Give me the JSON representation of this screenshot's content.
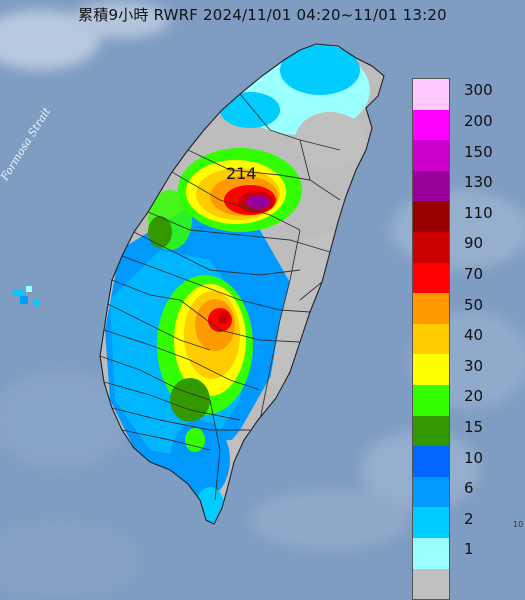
{
  "title": "累積9小時 RWRF 2024/11/01 04:20~11/01 13:20",
  "strait_label": "Formosa Strait",
  "max_value_label": "214",
  "corner_mark": "10",
  "legend": {
    "levels": [
      {
        "label": "300",
        "color": "#ffc8ff"
      },
      {
        "label": "200",
        "color": "#ff00ff"
      },
      {
        "label": "150",
        "color": "#cc00cc"
      },
      {
        "label": "130",
        "color": "#990099"
      },
      {
        "label": "110",
        "color": "#990000"
      },
      {
        "label": "90",
        "color": "#cc0000"
      },
      {
        "label": "70",
        "color": "#ff0000"
      },
      {
        "label": "50",
        "color": "#ff9900"
      },
      {
        "label": "40",
        "color": "#ffcc00"
      },
      {
        "label": "30",
        "color": "#ffff00"
      },
      {
        "label": "20",
        "color": "#33ff00"
      },
      {
        "label": "15",
        "color": "#339900"
      },
      {
        "label": "10",
        "color": "#0066ff"
      },
      {
        "label": "6",
        "color": "#0099ff"
      },
      {
        "label": "2",
        "color": "#00ccff"
      },
      {
        "label": "1",
        "color": "#99ffff"
      },
      {
        "label": "",
        "color": "#c0c0c0"
      }
    ]
  },
  "colors": {
    "sea": "#7f9cc2",
    "land_base": "#bdbdbd",
    "county_border": "#333333"
  }
}
